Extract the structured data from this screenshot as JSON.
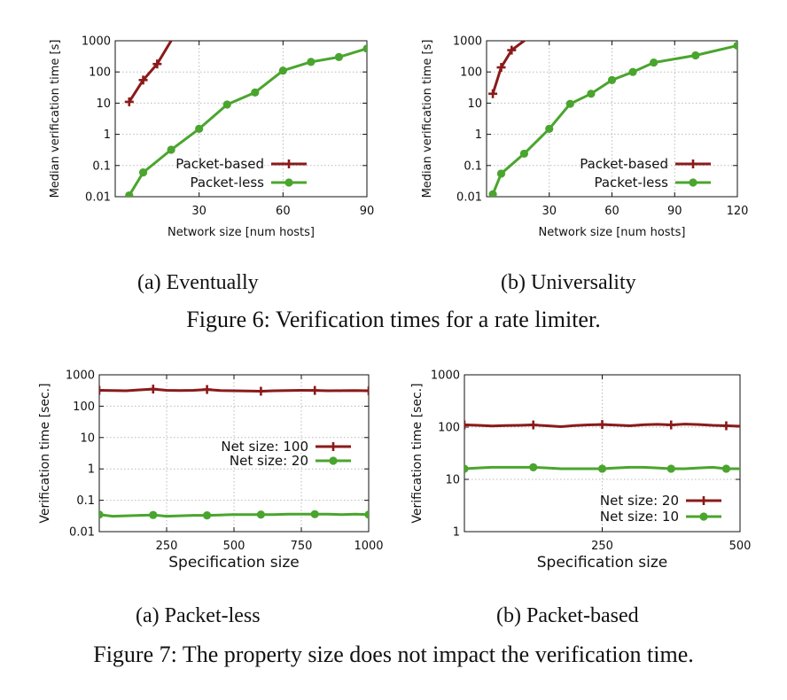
{
  "colors": {
    "red": "#8b1a1a",
    "green": "#4aa52e"
  },
  "figure6": {
    "caption_label": "Figure 6:",
    "caption_text": " Verification times for a rate limiter.",
    "sub_a": "(a) Eventually",
    "sub_b": "(b) Universality"
  },
  "figure7": {
    "caption_label": "Figure 7:",
    "caption_text": " The property size does not impact the verification time.",
    "sub_a": "(a) Packet-less",
    "sub_b": "(b) Packet-based"
  },
  "chart_data": [
    {
      "id": "fig6a",
      "type": "line",
      "title": "",
      "xlabel": "Network size [num hosts]",
      "ylabel": "Median verification time [s]",
      "xlim": [
        0,
        90
      ],
      "ylim": [
        0.01,
        1000
      ],
      "yscale": "log",
      "xticks": [
        30,
        60,
        90
      ],
      "yticks": [
        0.01,
        0.1,
        1,
        10,
        100,
        1000
      ],
      "ytick_labels": [
        "0.01",
        "0.1",
        "1",
        "10",
        "100",
        "1000"
      ],
      "grid": true,
      "legend": "bottom-right",
      "series": [
        {
          "name": "Packet-based",
          "color": "#8b1a1a",
          "marker": "cross",
          "x": [
            5,
            10,
            15,
            20
          ],
          "y": [
            11,
            55,
            180,
            1000
          ],
          "marker_x": [
            5,
            10,
            15
          ]
        },
        {
          "name": "Packet-less",
          "color": "#4aa52e",
          "marker": "circle",
          "x": [
            5,
            10,
            20,
            30,
            40,
            50,
            60,
            70,
            80,
            90
          ],
          "y": [
            0.011,
            0.06,
            0.32,
            1.5,
            9,
            22,
            110,
            210,
            300,
            560
          ]
        }
      ]
    },
    {
      "id": "fig6b",
      "type": "line",
      "title": "",
      "xlabel": "Network size [num hosts]",
      "ylabel": "Median verification time [s]",
      "xlim": [
        0,
        120
      ],
      "ylim": [
        0.01,
        1000
      ],
      "yscale": "log",
      "xticks": [
        30,
        60,
        90,
        120
      ],
      "yticks": [
        0.01,
        0.1,
        1,
        10,
        100,
        1000
      ],
      "ytick_labels": [
        "0.01",
        "0.1",
        "1",
        "10",
        "100",
        "1000"
      ],
      "grid": true,
      "legend": "bottom-right",
      "series": [
        {
          "name": "Packet-based",
          "color": "#8b1a1a",
          "marker": "cross",
          "x": [
            3,
            7,
            12,
            18
          ],
          "y": [
            20,
            140,
            500,
            1000
          ],
          "marker_x": [
            3,
            7,
            12
          ]
        },
        {
          "name": "Packet-less",
          "color": "#4aa52e",
          "marker": "circle",
          "x": [
            3,
            7,
            18,
            30,
            40,
            50,
            60,
            70,
            80,
            100,
            120
          ],
          "y": [
            0.012,
            0.055,
            0.24,
            1.5,
            9.5,
            20,
            55,
            100,
            200,
            340,
            700
          ]
        }
      ]
    },
    {
      "id": "fig7a",
      "type": "line",
      "title": "",
      "xlabel": "Specification size",
      "ylabel": "Verification time [sec.]",
      "xlim": [
        0,
        1000
      ],
      "ylim": [
        0.01,
        1000
      ],
      "yscale": "log",
      "xticks": [
        250,
        500,
        750,
        1000
      ],
      "yticks": [
        0.01,
        0.1,
        1,
        10,
        100,
        1000
      ],
      "ytick_labels": [
        "0.01",
        "0.1",
        "1",
        "10",
        "100",
        "1000"
      ],
      "grid": true,
      "legend": "right",
      "series": [
        {
          "name": "Net size: 100",
          "color": "#8b1a1a",
          "marker": "cross",
          "x": [
            0,
            50,
            100,
            150,
            200,
            250,
            300,
            350,
            400,
            450,
            500,
            550,
            600,
            650,
            700,
            750,
            800,
            850,
            900,
            950,
            1000
          ],
          "y": [
            320,
            315,
            310,
            330,
            350,
            320,
            315,
            320,
            340,
            315,
            310,
            305,
            300,
            310,
            315,
            320,
            318,
            310,
            312,
            315,
            310
          ],
          "marker_x": [
            0,
            200,
            400,
            600,
            800,
            1000
          ]
        },
        {
          "name": "Net size: 20",
          "color": "#4aa52e",
          "marker": "circle",
          "x": [
            0,
            50,
            100,
            150,
            200,
            250,
            300,
            350,
            400,
            450,
            500,
            550,
            600,
            650,
            700,
            750,
            800,
            850,
            900,
            950,
            1000
          ],
          "y": [
            0.035,
            0.031,
            0.032,
            0.033,
            0.034,
            0.031,
            0.032,
            0.033,
            0.033,
            0.034,
            0.035,
            0.035,
            0.035,
            0.035,
            0.036,
            0.036,
            0.036,
            0.036,
            0.035,
            0.036,
            0.035
          ],
          "marker_x": [
            0,
            200,
            400,
            600,
            800,
            1000
          ]
        }
      ]
    },
    {
      "id": "fig7b",
      "type": "line",
      "title": "",
      "xlabel": "Specification size",
      "ylabel": "Verification time [sec.]",
      "xlim": [
        0,
        500
      ],
      "ylim": [
        1,
        1000
      ],
      "yscale": "log",
      "xticks": [
        250,
        500
      ],
      "yticks": [
        1,
        10,
        100,
        1000
      ],
      "ytick_labels": [
        "1",
        "10",
        "100",
        "1000"
      ],
      "grid": true,
      "legend": "bottom-right",
      "series": [
        {
          "name": "Net size: 20",
          "color": "#8b1a1a",
          "marker": "cross",
          "x": [
            0,
            25,
            50,
            75,
            100,
            125,
            150,
            175,
            200,
            225,
            250,
            275,
            300,
            325,
            350,
            375,
            400,
            425,
            450,
            475,
            500
          ],
          "y": [
            110,
            108,
            105,
            107,
            108,
            110,
            106,
            102,
            107,
            110,
            112,
            109,
            106,
            111,
            113,
            110,
            114,
            112,
            108,
            106,
            104
          ],
          "marker_x": [
            0,
            125,
            250,
            375,
            475
          ]
        },
        {
          "name": "Net size: 10",
          "color": "#4aa52e",
          "marker": "circle",
          "x": [
            0,
            25,
            50,
            75,
            100,
            125,
            150,
            175,
            200,
            225,
            250,
            275,
            300,
            325,
            350,
            375,
            400,
            425,
            450,
            475,
            500
          ],
          "y": [
            16,
            16.5,
            17,
            17,
            17,
            17,
            16.5,
            16,
            16,
            16,
            16,
            16.5,
            17,
            17,
            16.5,
            16,
            16,
            16.5,
            17,
            16,
            16
          ],
          "marker_x": [
            0,
            125,
            250,
            375,
            475
          ]
        }
      ]
    }
  ]
}
